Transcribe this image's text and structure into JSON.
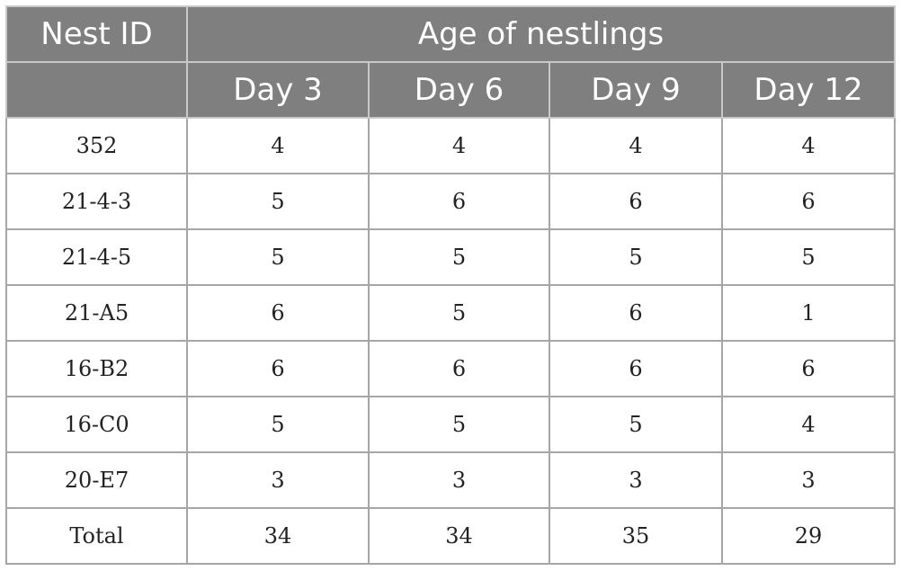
{
  "header": {
    "nest_id_label": "Nest ID",
    "age_label": "Age of nestlings",
    "day_labels": [
      "Day 3",
      "Day 6",
      "Day 9",
      "Day 12"
    ]
  },
  "rows": [
    {
      "id": "352",
      "values": [
        "4",
        "4",
        "4",
        "4"
      ]
    },
    {
      "id": "21-4-3",
      "values": [
        "5",
        "6",
        "6",
        "6"
      ]
    },
    {
      "id": "21-4-5",
      "values": [
        "5",
        "5",
        "5",
        "5"
      ]
    },
    {
      "id": "21-A5",
      "values": [
        "6",
        "5",
        "6",
        "1"
      ]
    },
    {
      "id": "16-B2",
      "values": [
        "6",
        "6",
        "6",
        "6"
      ]
    },
    {
      "id": "16-C0",
      "values": [
        "5",
        "5",
        "5",
        "4"
      ]
    },
    {
      "id": "20-E7",
      "values": [
        "3",
        "3",
        "3",
        "3"
      ]
    }
  ],
  "total": {
    "label": "Total",
    "values": [
      "34",
      "34",
      "35",
      "29"
    ]
  },
  "colors": {
    "header_bg": "#7f7f7f",
    "header_text": "#ffffff",
    "grid": "#a6a6a6"
  }
}
